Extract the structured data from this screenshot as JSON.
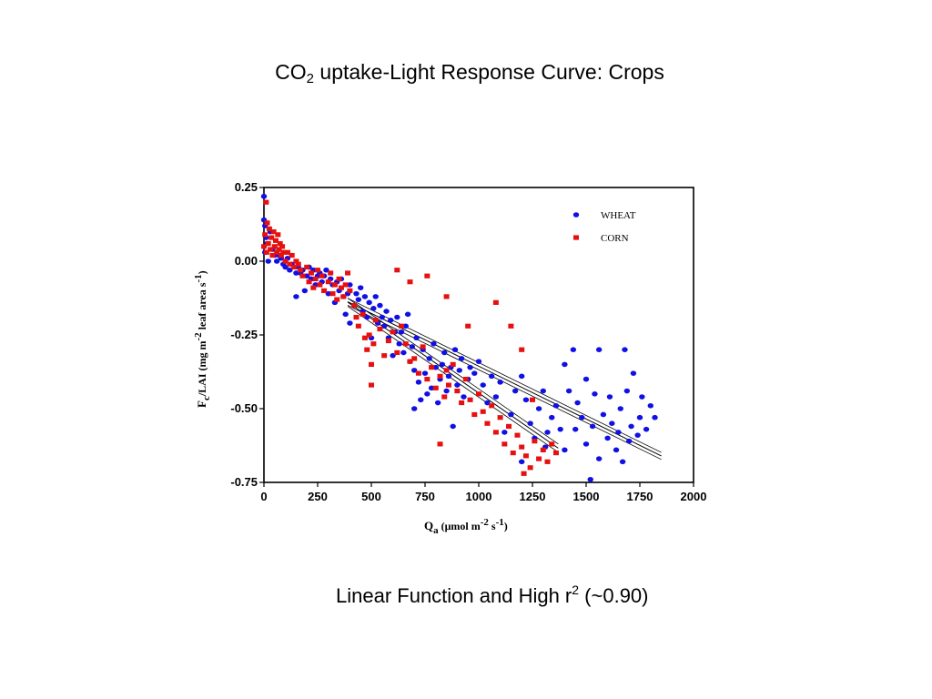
{
  "slide": {
    "title_main": "CO",
    "title_sub": "2",
    "title_rest": " uptake-Light Response Curve: Crops",
    "caption_main": "Linear Function and High r",
    "caption_sup": "2",
    "caption_rest": " (~0.90)"
  },
  "chart_data": {
    "type": "scatter",
    "xlabel": {
      "base": "Q",
      "sub": "a",
      "unit_a": " (μmol m",
      "sup1": "-2",
      "unit_b": " s",
      "sup2": "-1",
      "unit_c": ")"
    },
    "ylabel": {
      "base": "F",
      "sub": "c",
      "unit_a": "/LAI (mg m",
      "sup1": "-2",
      "unit_b": " leaf area s",
      "sup2": "-1",
      "unit_c": ")"
    },
    "xlim": [
      0,
      2000
    ],
    "ylim": [
      -0.75,
      0.25
    ],
    "xticks": [
      "0",
      "250",
      "500",
      "750",
      "1000",
      "1250",
      "1500",
      "1750",
      "2000"
    ],
    "yticks": [
      "0.25",
      "0.00",
      "-0.25",
      "-0.50",
      "-0.75"
    ],
    "grid": false,
    "legend": "top-right",
    "colors": {
      "WHEAT": "#1010e6",
      "CORN": "#e61010"
    },
    "series": [
      {
        "name": "WHEAT",
        "marker": "circle",
        "points": [
          [
            0,
            0.22
          ],
          [
            0,
            0.14
          ],
          [
            5,
            0.12
          ],
          [
            10,
            0.08
          ],
          [
            5,
            0.03
          ],
          [
            15,
            0.06
          ],
          [
            20,
            0.0
          ],
          [
            30,
            0.1
          ],
          [
            40,
            0.04
          ],
          [
            50,
            0.02
          ],
          [
            60,
            0.0
          ],
          [
            70,
            0.02
          ],
          [
            80,
            0.01
          ],
          [
            90,
            -0.01
          ],
          [
            100,
            -0.02
          ],
          [
            110,
            0.01
          ],
          [
            120,
            -0.03
          ],
          [
            130,
            -0.01
          ],
          [
            150,
            -0.04
          ],
          [
            150,
            -0.12
          ],
          [
            160,
            -0.02
          ],
          [
            170,
            -0.04
          ],
          [
            180,
            -0.03
          ],
          [
            190,
            -0.1
          ],
          [
            200,
            -0.05
          ],
          [
            210,
            -0.02
          ],
          [
            220,
            -0.06
          ],
          [
            230,
            -0.03
          ],
          [
            240,
            -0.08
          ],
          [
            250,
            -0.05
          ],
          [
            260,
            -0.04
          ],
          [
            270,
            -0.07
          ],
          [
            280,
            -0.05
          ],
          [
            290,
            -0.03
          ],
          [
            300,
            -0.11
          ],
          [
            310,
            -0.06
          ],
          [
            320,
            -0.08
          ],
          [
            330,
            -0.14
          ],
          [
            340,
            -0.07
          ],
          [
            350,
            -0.1
          ],
          [
            360,
            -0.06
          ],
          [
            370,
            -0.12
          ],
          [
            380,
            -0.18
          ],
          [
            390,
            -0.11
          ],
          [
            400,
            -0.21
          ],
          [
            400,
            -0.08
          ],
          [
            420,
            -0.15
          ],
          [
            430,
            -0.11
          ],
          [
            440,
            -0.13
          ],
          [
            450,
            -0.09
          ],
          [
            460,
            -0.17
          ],
          [
            470,
            -0.12
          ],
          [
            480,
            -0.19
          ],
          [
            490,
            -0.14
          ],
          [
            500,
            -0.26
          ],
          [
            510,
            -0.16
          ],
          [
            520,
            -0.12
          ],
          [
            530,
            -0.21
          ],
          [
            540,
            -0.15
          ],
          [
            550,
            -0.19
          ],
          [
            560,
            -0.22
          ],
          [
            570,
            -0.17
          ],
          [
            580,
            -0.26
          ],
          [
            590,
            -0.2
          ],
          [
            600,
            -0.32
          ],
          [
            610,
            -0.24
          ],
          [
            620,
            -0.19
          ],
          [
            630,
            -0.28
          ],
          [
            640,
            -0.24
          ],
          [
            650,
            -0.31
          ],
          [
            660,
            -0.22
          ],
          [
            670,
            -0.18
          ],
          [
            680,
            -0.34
          ],
          [
            690,
            -0.29
          ],
          [
            700,
            -0.37
          ],
          [
            700,
            -0.5
          ],
          [
            710,
            -0.26
          ],
          [
            720,
            -0.41
          ],
          [
            730,
            -0.47
          ],
          [
            740,
            -0.3
          ],
          [
            750,
            -0.38
          ],
          [
            760,
            -0.45
          ],
          [
            770,
            -0.33
          ],
          [
            780,
            -0.43
          ],
          [
            790,
            -0.28
          ],
          [
            800,
            -0.36
          ],
          [
            810,
            -0.48
          ],
          [
            820,
            -0.4
          ],
          [
            830,
            -0.35
          ],
          [
            840,
            -0.31
          ],
          [
            850,
            -0.44
          ],
          [
            860,
            -0.39
          ],
          [
            870,
            -0.36
          ],
          [
            880,
            -0.56
          ],
          [
            890,
            -0.3
          ],
          [
            900,
            -0.42
          ],
          [
            910,
            -0.37
          ],
          [
            920,
            -0.33
          ],
          [
            930,
            -0.46
          ],
          [
            950,
            -0.4
          ],
          [
            960,
            -0.36
          ],
          [
            980,
            -0.38
          ],
          [
            1000,
            -0.34
          ],
          [
            1020,
            -0.42
          ],
          [
            1040,
            -0.48
          ],
          [
            1060,
            -0.39
          ],
          [
            1080,
            -0.46
          ],
          [
            1100,
            -0.41
          ],
          [
            1120,
            -0.58
          ],
          [
            1150,
            -0.52
          ],
          [
            1170,
            -0.44
          ],
          [
            1200,
            -0.39
          ],
          [
            1200,
            -0.68
          ],
          [
            1220,
            -0.47
          ],
          [
            1240,
            -0.55
          ],
          [
            1260,
            -0.6
          ],
          [
            1280,
            -0.5
          ],
          [
            1300,
            -0.44
          ],
          [
            1310,
            -0.63
          ],
          [
            1320,
            -0.58
          ],
          [
            1340,
            -0.53
          ],
          [
            1360,
            -0.49
          ],
          [
            1380,
            -0.57
          ],
          [
            1400,
            -0.64
          ],
          [
            1400,
            -0.35
          ],
          [
            1420,
            -0.44
          ],
          [
            1440,
            -0.3
          ],
          [
            1450,
            -0.57
          ],
          [
            1460,
            -0.48
          ],
          [
            1480,
            -0.53
          ],
          [
            1500,
            -0.4
          ],
          [
            1500,
            -0.62
          ],
          [
            1520,
            -0.74
          ],
          [
            1530,
            -0.56
          ],
          [
            1540,
            -0.45
          ],
          [
            1560,
            -0.67
          ],
          [
            1560,
            -0.3
          ],
          [
            1580,
            -0.52
          ],
          [
            1600,
            -0.6
          ],
          [
            1610,
            -0.46
          ],
          [
            1620,
            -0.55
          ],
          [
            1640,
            -0.64
          ],
          [
            1650,
            -0.58
          ],
          [
            1660,
            -0.5
          ],
          [
            1670,
            -0.68
          ],
          [
            1680,
            -0.3
          ],
          [
            1690,
            -0.44
          ],
          [
            1700,
            -0.61
          ],
          [
            1710,
            -0.56
          ],
          [
            1720,
            -0.38
          ],
          [
            1740,
            -0.59
          ],
          [
            1750,
            -0.53
          ],
          [
            1760,
            -0.46
          ],
          [
            1780,
            -0.57
          ],
          [
            1800,
            -0.49
          ],
          [
            1820,
            -0.53
          ]
        ]
      },
      {
        "name": "CORN",
        "marker": "square",
        "points": [
          [
            0,
            0.05
          ],
          [
            5,
            0.09
          ],
          [
            10,
            0.2
          ],
          [
            12,
            0.03
          ],
          [
            15,
            0.13
          ],
          [
            20,
            0.06
          ],
          [
            25,
            0.11
          ],
          [
            30,
            0.04
          ],
          [
            35,
            0.08
          ],
          [
            40,
            0.02
          ],
          [
            45,
            0.1
          ],
          [
            50,
            0.05
          ],
          [
            55,
            0.07
          ],
          [
            60,
            0.03
          ],
          [
            65,
            0.09
          ],
          [
            70,
            0.04
          ],
          [
            75,
            0.06
          ],
          [
            80,
            0.02
          ],
          [
            85,
            0.05
          ],
          [
            90,
            0.03
          ],
          [
            100,
            0.0
          ],
          [
            110,
            0.03
          ],
          [
            120,
            -0.01
          ],
          [
            130,
            0.02
          ],
          [
            140,
            -0.02
          ],
          [
            150,
            0.0
          ],
          [
            160,
            -0.01
          ],
          [
            170,
            -0.03
          ],
          [
            180,
            -0.05
          ],
          [
            200,
            -0.02
          ],
          [
            210,
            -0.07
          ],
          [
            220,
            -0.04
          ],
          [
            230,
            -0.09
          ],
          [
            240,
            -0.06
          ],
          [
            250,
            -0.03
          ],
          [
            260,
            -0.08
          ],
          [
            270,
            -0.05
          ],
          [
            280,
            -0.1
          ],
          [
            300,
            -0.07
          ],
          [
            310,
            -0.04
          ],
          [
            320,
            -0.11
          ],
          [
            330,
            -0.08
          ],
          [
            340,
            -0.13
          ],
          [
            350,
            -0.06
          ],
          [
            360,
            -0.09
          ],
          [
            370,
            -0.12
          ],
          [
            380,
            -0.08
          ],
          [
            390,
            -0.04
          ],
          [
            400,
            -0.1
          ],
          [
            420,
            -0.15
          ],
          [
            430,
            -0.19
          ],
          [
            440,
            -0.22
          ],
          [
            460,
            -0.18
          ],
          [
            470,
            -0.26
          ],
          [
            480,
            -0.3
          ],
          [
            490,
            -0.25
          ],
          [
            500,
            -0.35
          ],
          [
            500,
            -0.42
          ],
          [
            510,
            -0.28
          ],
          [
            520,
            -0.2
          ],
          [
            540,
            -0.23
          ],
          [
            560,
            -0.32
          ],
          [
            580,
            -0.27
          ],
          [
            600,
            -0.24
          ],
          [
            620,
            -0.31
          ],
          [
            640,
            -0.22
          ],
          [
            660,
            -0.28
          ],
          [
            680,
            -0.34
          ],
          [
            700,
            -0.33
          ],
          [
            720,
            -0.38
          ],
          [
            740,
            -0.29
          ],
          [
            760,
            -0.4
          ],
          [
            780,
            -0.36
          ],
          [
            800,
            -0.43
          ],
          [
            820,
            -0.39
          ],
          [
            840,
            -0.46
          ],
          [
            850,
            -0.37
          ],
          [
            860,
            -0.42
          ],
          [
            880,
            -0.35
          ],
          [
            900,
            -0.44
          ],
          [
            920,
            -0.48
          ],
          [
            940,
            -0.4
          ],
          [
            960,
            -0.47
          ],
          [
            980,
            -0.52
          ],
          [
            1000,
            -0.45
          ],
          [
            1020,
            -0.51
          ],
          [
            1040,
            -0.55
          ],
          [
            1060,
            -0.49
          ],
          [
            1080,
            -0.58
          ],
          [
            1100,
            -0.53
          ],
          [
            1120,
            -0.62
          ],
          [
            1140,
            -0.56
          ],
          [
            1160,
            -0.65
          ],
          [
            1180,
            -0.59
          ],
          [
            1200,
            -0.63
          ],
          [
            1210,
            -0.72
          ],
          [
            1220,
            -0.66
          ],
          [
            1240,
            -0.7
          ],
          [
            1260,
            -0.61
          ],
          [
            1280,
            -0.67
          ],
          [
            1300,
            -0.64
          ],
          [
            1320,
            -0.68
          ],
          [
            1340,
            -0.62
          ],
          [
            1360,
            -0.65
          ],
          [
            620,
            -0.03
          ],
          [
            680,
            -0.07
          ],
          [
            760,
            -0.05
          ],
          [
            850,
            -0.12
          ],
          [
            950,
            -0.22
          ],
          [
            1080,
            -0.14
          ],
          [
            1150,
            -0.22
          ],
          [
            1200,
            -0.3
          ],
          [
            1250,
            -0.47
          ],
          [
            820,
            -0.62
          ]
        ]
      }
    ],
    "fits": [
      {
        "series": "WHEAT",
        "x_range": [
          390,
          1850
        ],
        "intercept": 0.002,
        "slope": -0.000358,
        "band": 0.012
      },
      {
        "series": "CORN",
        "x_range": [
          390,
          1370
        ],
        "intercept": 0.058,
        "slope": -0.000505,
        "band": 0.014
      }
    ]
  }
}
